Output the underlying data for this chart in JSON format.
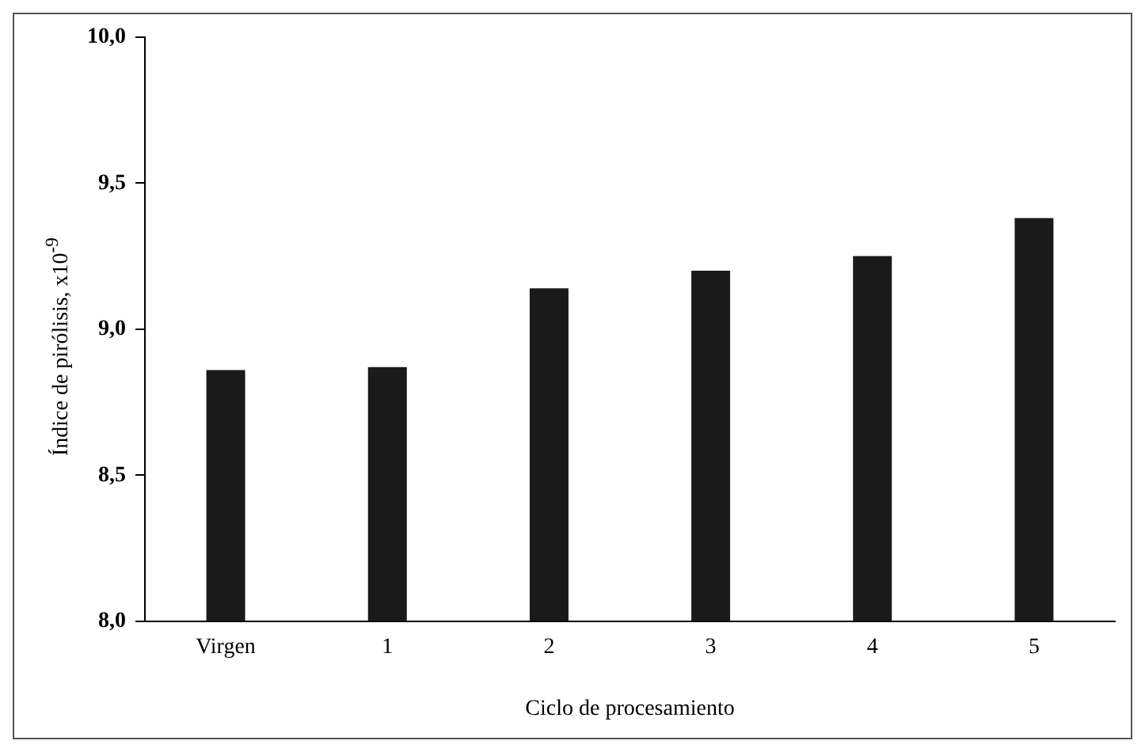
{
  "chart_data": {
    "type": "bar",
    "xlabel": "Ciclo de procesamiento",
    "ylabel": "Índice de pirólisis, x10$^{-9}$",
    "categories": [
      "Virgen",
      "1",
      "2",
      "3",
      "4",
      "5"
    ],
    "values": [
      8.86,
      8.87,
      9.14,
      9.2,
      9.25,
      9.38
    ],
    "color": "#1a1a1a",
    "ylim": [
      8,
      10
    ],
    "yticks": [
      {
        "value": 8,
        "label": "8,0"
      },
      {
        "value": 8.5,
        "label": "8,5"
      },
      {
        "value": 9,
        "label": "9,0"
      },
      {
        "value": 9.5,
        "label": "9,5"
      },
      {
        "value": 10,
        "label": "10,0"
      }
    ],
    "grid": false,
    "legend": false
  }
}
